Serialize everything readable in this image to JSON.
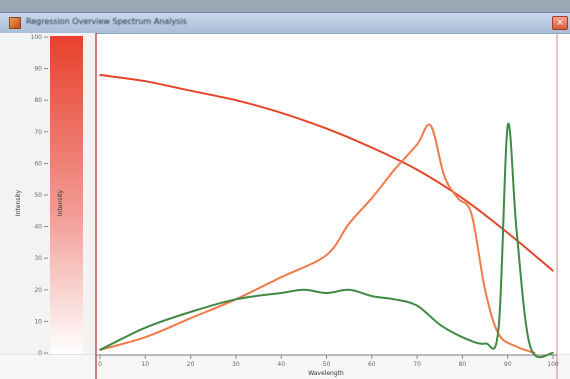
{
  "window": {
    "title": "Regression Overview Spectrum Analysis",
    "close_label": "×"
  },
  "colors": {
    "red_series": "#e6452a",
    "orange_series": "#f07a4a",
    "green_series": "#3f8a44",
    "colorbar_top": "#e8402c",
    "colorbar_bottom": "#ffffff"
  },
  "chart_data": {
    "type": "line",
    "title": "",
    "xlabel": "Wavelength",
    "ylabel": "Intensity",
    "colorbar_label": "Intensity",
    "xlim": [
      0,
      100
    ],
    "ylim": [
      0,
      100
    ],
    "x_ticks": [
      "0",
      "10",
      "20",
      "30",
      "40",
      "50",
      "60",
      "70",
      "80",
      "90",
      "100"
    ],
    "y_ticks": [
      "0",
      "10",
      "20",
      "30",
      "40",
      "50",
      "60",
      "70",
      "80",
      "90",
      "100"
    ],
    "grid": false,
    "series": [
      {
        "key": "red",
        "points": [
          [
            0,
            88
          ],
          [
            10,
            86
          ],
          [
            20,
            83
          ],
          [
            30,
            80
          ],
          [
            40,
            76
          ],
          [
            50,
            71
          ],
          [
            60,
            65
          ],
          [
            70,
            58
          ],
          [
            80,
            49
          ],
          [
            90,
            38
          ],
          [
            100,
            26
          ]
        ]
      },
      {
        "key": "orange",
        "points": [
          [
            0,
            1
          ],
          [
            10,
            5
          ],
          [
            20,
            11
          ],
          [
            30,
            17
          ],
          [
            40,
            24
          ],
          [
            50,
            31
          ],
          [
            55,
            41
          ],
          [
            60,
            49
          ],
          [
            65,
            58
          ],
          [
            70,
            66
          ],
          [
            73,
            72
          ],
          [
            76,
            56
          ],
          [
            79,
            49
          ],
          [
            82,
            44
          ],
          [
            85,
            20
          ],
          [
            88,
            6
          ],
          [
            92,
            2
          ],
          [
            96,
            0
          ]
        ]
      },
      {
        "key": "green",
        "points": [
          [
            0,
            1
          ],
          [
            10,
            8
          ],
          [
            20,
            13
          ],
          [
            30,
            17
          ],
          [
            40,
            19
          ],
          [
            45,
            20
          ],
          [
            50,
            19
          ],
          [
            55,
            20
          ],
          [
            60,
            18
          ],
          [
            65,
            17
          ],
          [
            70,
            15
          ],
          [
            75,
            9
          ],
          [
            80,
            5
          ],
          [
            85,
            3
          ],
          [
            88,
            8
          ],
          [
            90,
            72
          ],
          [
            92,
            38
          ],
          [
            95,
            2
          ],
          [
            100,
            0
          ]
        ]
      }
    ]
  }
}
